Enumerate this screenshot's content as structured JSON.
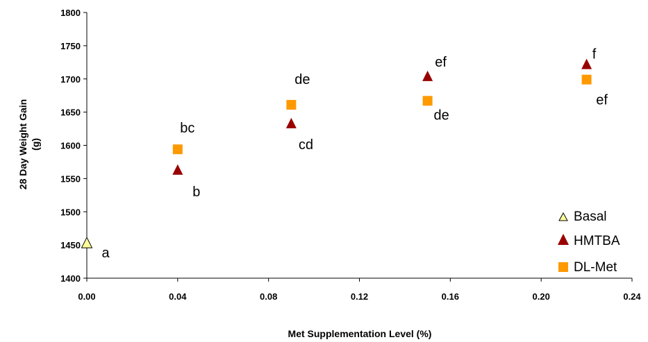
{
  "chart_data": {
    "type": "scatter",
    "xlabel": "Met Supplementation Level (%)",
    "ylabel": "28 Day Weight Gain",
    "ylabel_line2": "(g)",
    "xlim": [
      0,
      0.24
    ],
    "ylim": [
      1400,
      1800
    ],
    "x_ticks": [
      "0.00",
      "0.04",
      "0.08",
      "0.12",
      "0.16",
      "0.20",
      "0.24"
    ],
    "y_ticks": [
      "1400",
      "1450",
      "1500",
      "1550",
      "1600",
      "1650",
      "1700",
      "1750",
      "1800"
    ],
    "grid": false,
    "legend_position": "bottom-right",
    "series": [
      {
        "name": "Basal",
        "marker": "triangle",
        "color": "#ffff99",
        "points": [
          {
            "x": 0.0,
            "y": 1452,
            "label": "a"
          }
        ]
      },
      {
        "name": "HMTBA",
        "marker": "triangle",
        "color": "#990000",
        "points": [
          {
            "x": 0.04,
            "y": 1562,
            "label": "b"
          },
          {
            "x": 0.09,
            "y": 1632,
            "label": "cd"
          },
          {
            "x": 0.15,
            "y": 1703,
            "label": "ef"
          },
          {
            "x": 0.22,
            "y": 1721,
            "label": "f"
          }
        ]
      },
      {
        "name": "DL-Met",
        "marker": "square",
        "color": "#ff9900",
        "points": [
          {
            "x": 0.04,
            "y": 1594,
            "label": "bc"
          },
          {
            "x": 0.09,
            "y": 1661,
            "label": "de"
          },
          {
            "x": 0.15,
            "y": 1667,
            "label": "de"
          },
          {
            "x": 0.22,
            "y": 1699,
            "label": "ef"
          }
        ]
      }
    ]
  }
}
